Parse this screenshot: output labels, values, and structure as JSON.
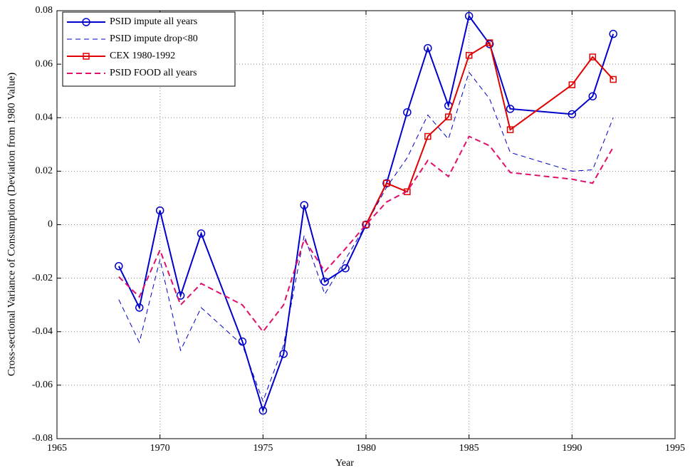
{
  "chart_data": {
    "type": "line",
    "xlabel": "Year",
    "ylabel": "Cross-sectional Variance of Consumption (Deviation from 1980 Value)",
    "xlim": [
      1965,
      1995
    ],
    "xticks": [
      1965,
      1970,
      1975,
      1980,
      1985,
      1990,
      1995
    ],
    "ylim": [
      -0.08,
      0.08
    ],
    "yticks": [
      -0.08,
      -0.06,
      -0.04,
      -0.02,
      0,
      0.02,
      0.04,
      0.06,
      0.08
    ],
    "grid": true,
    "legend": "upper left",
    "series": [
      {
        "name": "PSID impute all years",
        "color": "#0000cc",
        "marker": "circle",
        "dash": "solid",
        "width": 2,
        "x": [
          1968,
          1969,
          1970,
          1971,
          1972,
          1974,
          1975,
          1976,
          1977,
          1978,
          1979,
          1980,
          1981,
          1982,
          1983,
          1984,
          1985,
          1986,
          1987,
          1990,
          1991,
          1992
        ],
        "values": [
          -0.0155,
          -0.031,
          0.0053,
          -0.0265,
          -0.0033,
          -0.0437,
          -0.0695,
          -0.0483,
          0.0073,
          -0.0213,
          -0.0163,
          0,
          0.0155,
          0.042,
          0.066,
          0.0445,
          0.078,
          0.0675,
          0.0433,
          0.0413,
          0.048,
          0.0713
        ]
      },
      {
        "name": "PSID impute drop<80",
        "color": "#0000cc",
        "marker": "none",
        "dash": "dashed",
        "width": 1,
        "x": [
          1968,
          1969,
          1970,
          1971,
          1972,
          1974,
          1975,
          1976,
          1977,
          1978,
          1979,
          1980,
          1981,
          1982,
          1983,
          1984,
          1985,
          1986,
          1987,
          1990,
          1991,
          1992
        ],
        "values": [
          -0.028,
          -0.044,
          -0.013,
          -0.047,
          -0.031,
          -0.045,
          -0.066,
          -0.045,
          -0.004,
          -0.026,
          -0.013,
          0,
          0.014,
          0.025,
          0.041,
          0.032,
          0.057,
          0.047,
          0.027,
          0.02,
          0.0205,
          0.04
        ]
      },
      {
        "name": "CEX 1980-1992",
        "color": "#e00000",
        "marker": "square",
        "dash": "solid",
        "width": 2,
        "x": [
          1980,
          1981,
          1982,
          1983,
          1984,
          1985,
          1986,
          1987,
          1990,
          1991,
          1992
        ],
        "values": [
          0,
          0.0155,
          0.0123,
          0.033,
          0.0403,
          0.0633,
          0.068,
          0.0355,
          0.0523,
          0.0627,
          0.0543
        ]
      },
      {
        "name": "PSID FOOD all years",
        "color": "#e0106a",
        "marker": "none",
        "dash": "dashed",
        "width": 2,
        "x": [
          1968,
          1969,
          1970,
          1971,
          1972,
          1974,
          1975,
          1976,
          1977,
          1978,
          1979,
          1980,
          1981,
          1982,
          1983,
          1984,
          1985,
          1986,
          1987,
          1990,
          1991,
          1992
        ],
        "values": [
          -0.0195,
          -0.027,
          -0.0095,
          -0.03,
          -0.022,
          -0.03,
          -0.04,
          -0.03,
          -0.0055,
          -0.0175,
          -0.009,
          0,
          0.0085,
          0.0125,
          0.024,
          0.018,
          0.033,
          0.0295,
          0.0195,
          0.017,
          0.0155,
          0.029
        ]
      }
    ]
  }
}
